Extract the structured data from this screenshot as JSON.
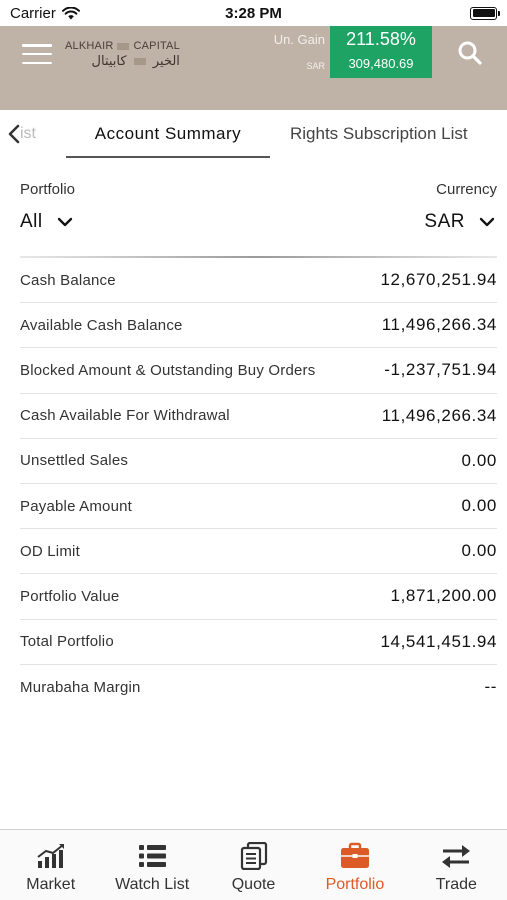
{
  "status_bar": {
    "carrier": "Carrier",
    "time": "3:28 PM",
    "wifi_icon": "wifi-icon",
    "battery_icon": "battery-icon"
  },
  "header": {
    "menu_icon": "hamburger-menu-icon",
    "logo_en_left": "ALKHAIR",
    "logo_en_right": "CAPITAL",
    "logo_ar_right": "الخير",
    "logo_ar_left": "كابيتال",
    "gain_label": "Un. Gain",
    "gain_currency": "SAR",
    "gain_percent": "211.58%",
    "gain_amount": "309,480.69",
    "gain_color": "#1ea364",
    "header_color": "#bfb3a8",
    "search_icon": "search-icon"
  },
  "tabs": {
    "prev_label": "ist",
    "active_label": "Account Summary",
    "next_label": "Rights Subscription List"
  },
  "selectors": {
    "portfolio_label": "Portfolio",
    "portfolio_value": "All",
    "currency_label": "Currency",
    "currency_value": "SAR"
  },
  "summary_rows": [
    {
      "label": "Cash Balance",
      "value": "12,670,251.94"
    },
    {
      "label": "Available Cash Balance",
      "value": "11,496,266.34"
    },
    {
      "label": "Blocked Amount & Outstanding Buy Orders",
      "value": "-1,237,751.94"
    },
    {
      "label": "Cash Available For Withdrawal",
      "value": "11,496,266.34"
    },
    {
      "label": "Unsettled Sales",
      "value": "0.00"
    },
    {
      "label": "Payable Amount",
      "value": "0.00"
    },
    {
      "label": "OD Limit",
      "value": "0.00"
    },
    {
      "label": "Portfolio Value",
      "value": "1,871,200.00"
    },
    {
      "label": "Total Portfolio",
      "value": "14,541,451.94"
    },
    {
      "label": "Murabaha Margin",
      "value": "--"
    }
  ],
  "bottom_nav": {
    "active_color": "#dc5a25",
    "items": [
      {
        "label": "Market",
        "icon": "market-chart-icon"
      },
      {
        "label": "Watch List",
        "icon": "watch-list-icon"
      },
      {
        "label": "Quote",
        "icon": "quote-icon"
      },
      {
        "label": "Portfolio",
        "icon": "portfolio-briefcase-icon"
      },
      {
        "label": "Trade",
        "icon": "trade-arrows-icon"
      }
    ]
  }
}
